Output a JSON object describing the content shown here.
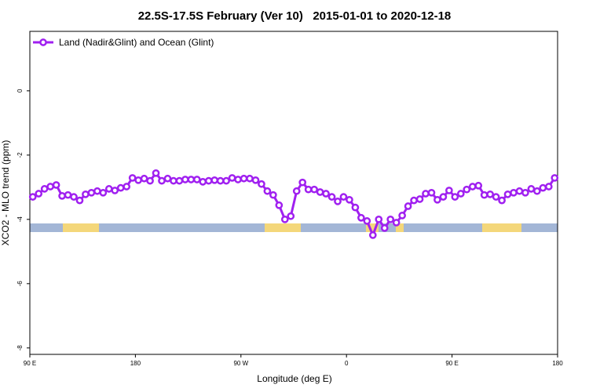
{
  "chart_data": {
    "type": "line",
    "title": "22.5S-17.5S February (Ver 10)   2015-01-01 to 2020-12-18",
    "x_label": "Longitude (deg E)",
    "y_label": "XCO2 - MLO trend (ppm)",
    "xlim": [
      90,
      540
    ],
    "ylim": [
      -8.2,
      1.85
    ],
    "xticks": [
      {
        "value": 90,
        "label": "90 E"
      },
      180,
      {
        "value": 270,
        "label": "90 W"
      },
      {
        "value": 360,
        "label": "0"
      },
      {
        "value": 450,
        "label": "90 E"
      },
      {
        "value": 540,
        "label": "180"
      }
    ],
    "yticks": [
      -8,
      -6,
      -4,
      -2,
      0
    ],
    "legend": "top-left",
    "x": [
      92.5,
      97.5,
      102.5,
      107.5,
      112.5,
      117.5,
      122.5,
      127.5,
      132.5,
      137.5,
      142.5,
      147.5,
      152.5,
      157.5,
      162.5,
      167.5,
      172.5,
      177.5,
      182.5,
      187.5,
      192.5,
      197.5,
      202.5,
      207.5,
      212.5,
      217.5,
      222.5,
      227.5,
      232.5,
      237.5,
      242.5,
      247.5,
      252.5,
      257.5,
      262.5,
      267.5,
      272.5,
      277.5,
      282.5,
      287.5,
      292.5,
      297.5,
      302.5,
      307.5,
      312.5,
      317.5,
      322.5,
      327.5,
      332.5,
      337.5,
      342.5,
      347.5,
      352.5,
      357.5,
      362.5,
      367.5,
      372.5,
      377.5,
      382.5,
      387.5,
      392.5,
      397.5,
      402.5,
      407.5,
      412.5,
      417.5,
      422.5,
      427.5,
      432.5,
      437.5,
      442.5,
      447.5,
      452.5,
      457.5,
      462.5,
      467.5,
      472.5,
      477.5,
      482.5,
      487.5,
      492.5,
      497.5,
      502.5,
      507.5,
      512.5,
      517.5,
      522.5,
      527.5,
      532.5,
      537.5
    ],
    "series": [
      {
        "name": "Land (Nadir&Glint) and Ocean (Glint)",
        "color": "#a020f0",
        "values": [
          -3.3,
          -3.2,
          -3.05,
          -2.98,
          -2.93,
          -3.27,
          -3.24,
          -3.3,
          -3.41,
          -3.22,
          -3.17,
          -3.12,
          -3.17,
          -3.05,
          -3.1,
          -3.02,
          -2.98,
          -2.71,
          -2.78,
          -2.73,
          -2.8,
          -2.56,
          -2.8,
          -2.73,
          -2.8,
          -2.8,
          -2.76,
          -2.76,
          -2.76,
          -2.83,
          -2.8,
          -2.78,
          -2.8,
          -2.8,
          -2.71,
          -2.76,
          -2.73,
          -2.73,
          -2.78,
          -2.9,
          -3.12,
          -3.24,
          -3.56,
          -4.0,
          -3.9,
          -3.12,
          -2.85,
          -3.07,
          -3.07,
          -3.15,
          -3.2,
          -3.3,
          -3.44,
          -3.3,
          -3.39,
          -3.63,
          -3.95,
          -4.05,
          -4.49,
          -4.0,
          -4.27,
          -4.0,
          -4.1,
          -3.88,
          -3.59,
          -3.41,
          -3.37,
          -3.2,
          -3.17,
          -3.39,
          -3.3,
          -3.1,
          -3.3,
          -3.2,
          -3.07,
          -2.98,
          -2.95,
          -3.24,
          -3.22,
          -3.3,
          -3.41,
          -3.22,
          -3.17,
          -3.12,
          -3.17,
          -3.05,
          -3.12,
          -3.02,
          -2.98,
          -2.71
        ]
      }
    ]
  }
}
